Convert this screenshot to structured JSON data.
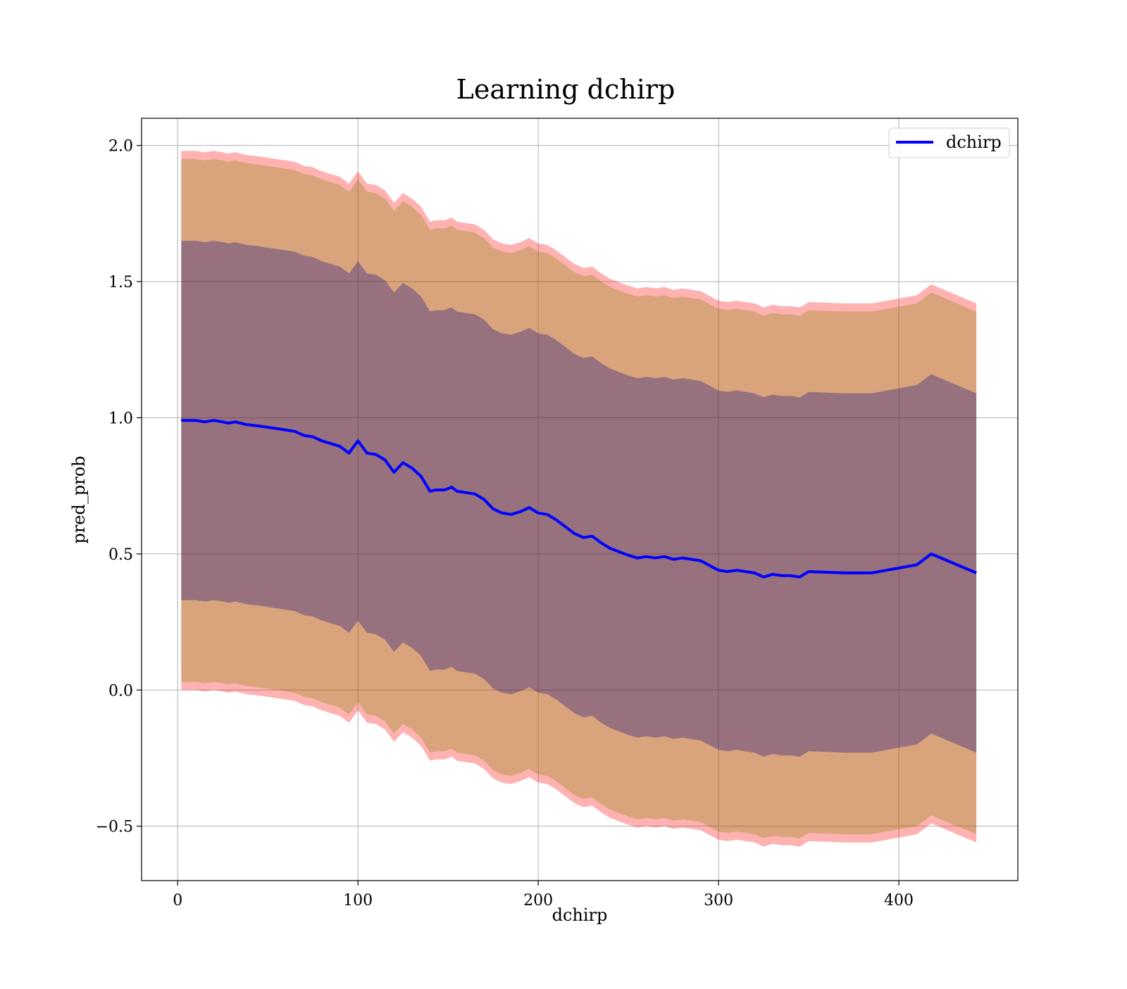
{
  "chart_data": {
    "type": "line",
    "title": "Learning dchirp",
    "xlabel": "dchirp",
    "ylabel": "pred_prob",
    "xlim": [
      -20,
      466
    ],
    "ylim": [
      -0.7,
      2.1
    ],
    "xticks": [
      0,
      100,
      200,
      300,
      400
    ],
    "xtick_labels": [
      "0",
      "100",
      "200",
      "300",
      "400"
    ],
    "yticks": [
      -0.5,
      0.0,
      0.5,
      1.0,
      1.5,
      2.0
    ],
    "ytick_labels": [
      "−0.5",
      "0.0",
      "0.5",
      "1.0",
      "1.5",
      "2.0"
    ],
    "grid": true,
    "legend_position": "top-right",
    "series": [
      {
        "name": "dchirp",
        "color": "#0000ff",
        "x": [
          2,
          10,
          15,
          20,
          25,
          28,
          32,
          38,
          45,
          50,
          55,
          60,
          65,
          70,
          75,
          80,
          85,
          90,
          95,
          100,
          105,
          110,
          115,
          120,
          125,
          130,
          135,
          140,
          143,
          148,
          152,
          155,
          160,
          165,
          170,
          175,
          180,
          185,
          190,
          195,
          200,
          205,
          210,
          215,
          220,
          225,
          230,
          235,
          240,
          250,
          255,
          260,
          265,
          270,
          275,
          280,
          285,
          290,
          300,
          305,
          310,
          315,
          320,
          325,
          330,
          335,
          340,
          345,
          350,
          370,
          385,
          410,
          418,
          443
        ],
        "y": [
          0.99,
          0.99,
          0.985,
          0.99,
          0.985,
          0.98,
          0.985,
          0.975,
          0.97,
          0.965,
          0.96,
          0.955,
          0.95,
          0.935,
          0.93,
          0.915,
          0.905,
          0.895,
          0.87,
          0.915,
          0.87,
          0.865,
          0.845,
          0.8,
          0.835,
          0.815,
          0.785,
          0.73,
          0.735,
          0.735,
          0.745,
          0.73,
          0.725,
          0.72,
          0.7,
          0.665,
          0.65,
          0.645,
          0.655,
          0.67,
          0.65,
          0.645,
          0.625,
          0.6,
          0.575,
          0.56,
          0.565,
          0.54,
          0.52,
          0.495,
          0.485,
          0.49,
          0.485,
          0.49,
          0.48,
          0.485,
          0.48,
          0.475,
          0.44,
          0.435,
          0.44,
          0.435,
          0.43,
          0.415,
          0.425,
          0.42,
          0.42,
          0.415,
          0.435,
          0.43,
          0.43,
          0.46,
          0.5,
          0.43
        ]
      }
    ],
    "bands": [
      {
        "label_visible": false,
        "color": "#ff0000",
        "opacity": 0.3,
        "half_width": 0.99
      },
      {
        "label_visible": false,
        "color": "#808000",
        "opacity": 0.3,
        "half_width": 0.96
      },
      {
        "label_visible": false,
        "color": "#000080",
        "opacity": 0.3,
        "half_width": 0.66
      }
    ]
  }
}
